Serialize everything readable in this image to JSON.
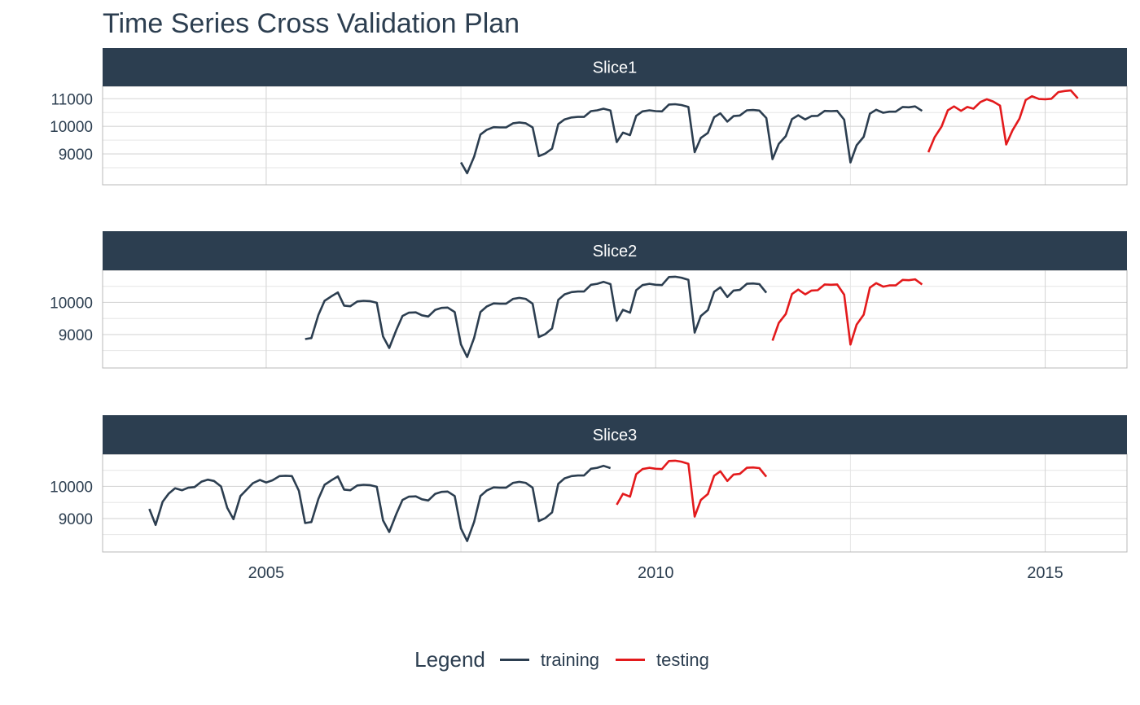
{
  "title": "Time Series Cross Validation Plan",
  "legend": {
    "title": "Legend",
    "items": [
      {
        "label": "training",
        "color": "#2c3e50"
      },
      {
        "label": "testing",
        "color": "#e31a1c"
      }
    ]
  },
  "colors": {
    "strip": "#2c3e50",
    "strip_text": "#ffffff",
    "training": "#2c3e50",
    "testing": "#e31a1c"
  },
  "chart_data": {
    "type": "line",
    "x_axis": {
      "ticks": [
        2005,
        2010,
        2015
      ],
      "range": [
        2002.9,
        2016.05
      ]
    },
    "base_series": [
      [
        2003.5,
        9300
      ],
      [
        2003.58,
        8800
      ],
      [
        2003.67,
        9520
      ],
      [
        2003.75,
        9780
      ],
      [
        2003.83,
        9940
      ],
      [
        2003.92,
        9880
      ],
      [
        2004.0,
        9960
      ],
      [
        2004.08,
        9980
      ],
      [
        2004.17,
        10150
      ],
      [
        2004.25,
        10210
      ],
      [
        2004.33,
        10170
      ],
      [
        2004.42,
        10000
      ],
      [
        2004.5,
        9330
      ],
      [
        2004.58,
        8980
      ],
      [
        2004.67,
        9700
      ],
      [
        2004.75,
        9900
      ],
      [
        2004.83,
        10100
      ],
      [
        2004.92,
        10200
      ],
      [
        2005.0,
        10120
      ],
      [
        2005.08,
        10190
      ],
      [
        2005.17,
        10320
      ],
      [
        2005.25,
        10330
      ],
      [
        2005.33,
        10320
      ],
      [
        2005.42,
        9860
      ],
      [
        2005.5,
        8860
      ],
      [
        2005.58,
        8890
      ],
      [
        2005.67,
        9610
      ],
      [
        2005.75,
        10050
      ],
      [
        2005.83,
        10180
      ],
      [
        2005.92,
        10310
      ],
      [
        2006.0,
        9900
      ],
      [
        2006.08,
        9880
      ],
      [
        2006.17,
        10030
      ],
      [
        2006.25,
        10050
      ],
      [
        2006.33,
        10040
      ],
      [
        2006.42,
        9990
      ],
      [
        2006.5,
        8940
      ],
      [
        2006.58,
        8580
      ],
      [
        2006.67,
        9140
      ],
      [
        2006.75,
        9580
      ],
      [
        2006.83,
        9680
      ],
      [
        2006.92,
        9690
      ],
      [
        2007.0,
        9600
      ],
      [
        2007.08,
        9560
      ],
      [
        2007.17,
        9770
      ],
      [
        2007.25,
        9830
      ],
      [
        2007.33,
        9840
      ],
      [
        2007.42,
        9700
      ],
      [
        2007.5,
        8690
      ],
      [
        2007.58,
        8300
      ],
      [
        2007.67,
        8900
      ],
      [
        2007.75,
        9700
      ],
      [
        2007.83,
        9870
      ],
      [
        2007.92,
        9970
      ],
      [
        2008.0,
        9960
      ],
      [
        2008.08,
        9960
      ],
      [
        2008.17,
        10110
      ],
      [
        2008.25,
        10140
      ],
      [
        2008.33,
        10110
      ],
      [
        2008.42,
        9960
      ],
      [
        2008.5,
        8920
      ],
      [
        2008.58,
        9010
      ],
      [
        2008.67,
        9190
      ],
      [
        2008.75,
        10080
      ],
      [
        2008.83,
        10250
      ],
      [
        2008.92,
        10320
      ],
      [
        2009.0,
        10340
      ],
      [
        2009.08,
        10340
      ],
      [
        2009.17,
        10550
      ],
      [
        2009.25,
        10580
      ],
      [
        2009.33,
        10640
      ],
      [
        2009.42,
        10570
      ],
      [
        2009.5,
        9430
      ],
      [
        2009.58,
        9770
      ],
      [
        2009.67,
        9680
      ],
      [
        2009.75,
        10380
      ],
      [
        2009.83,
        10540
      ],
      [
        2009.92,
        10580
      ],
      [
        2010.0,
        10550
      ],
      [
        2010.08,
        10540
      ],
      [
        2010.17,
        10790
      ],
      [
        2010.25,
        10800
      ],
      [
        2010.33,
        10770
      ],
      [
        2010.42,
        10700
      ],
      [
        2010.5,
        9060
      ],
      [
        2010.58,
        9580
      ],
      [
        2010.67,
        9760
      ],
      [
        2010.75,
        10330
      ],
      [
        2010.83,
        10470
      ],
      [
        2010.92,
        10170
      ],
      [
        2011.0,
        10370
      ],
      [
        2011.08,
        10390
      ],
      [
        2011.17,
        10580
      ],
      [
        2011.25,
        10590
      ],
      [
        2011.33,
        10570
      ],
      [
        2011.42,
        10300
      ],
      [
        2011.5,
        8810
      ],
      [
        2011.58,
        9360
      ],
      [
        2011.67,
        9640
      ],
      [
        2011.75,
        10260
      ],
      [
        2011.83,
        10400
      ],
      [
        2011.92,
        10250
      ],
      [
        2012.0,
        10370
      ],
      [
        2012.08,
        10380
      ],
      [
        2012.17,
        10560
      ],
      [
        2012.25,
        10550
      ],
      [
        2012.33,
        10560
      ],
      [
        2012.42,
        10240
      ],
      [
        2012.5,
        8690
      ],
      [
        2012.58,
        9310
      ],
      [
        2012.67,
        9620
      ],
      [
        2012.75,
        10460
      ],
      [
        2012.83,
        10600
      ],
      [
        2012.92,
        10490
      ],
      [
        2013.0,
        10530
      ],
      [
        2013.08,
        10530
      ],
      [
        2013.17,
        10700
      ],
      [
        2013.25,
        10690
      ],
      [
        2013.33,
        10720
      ],
      [
        2013.42,
        10560
      ],
      [
        2013.5,
        9060
      ],
      [
        2013.58,
        9600
      ],
      [
        2013.67,
        9990
      ],
      [
        2013.75,
        10580
      ],
      [
        2013.83,
        10720
      ],
      [
        2013.92,
        10560
      ],
      [
        2014.0,
        10700
      ],
      [
        2014.08,
        10640
      ],
      [
        2014.17,
        10880
      ],
      [
        2014.25,
        10980
      ],
      [
        2014.33,
        10900
      ],
      [
        2014.42,
        10750
      ],
      [
        2014.5,
        9340
      ],
      [
        2014.58,
        9850
      ],
      [
        2014.67,
        10280
      ],
      [
        2014.75,
        10950
      ],
      [
        2014.83,
        11090
      ],
      [
        2014.92,
        10990
      ],
      [
        2015.0,
        10980
      ],
      [
        2015.08,
        11000
      ],
      [
        2015.17,
        11240
      ],
      [
        2015.25,
        11280
      ],
      [
        2015.33,
        11300
      ],
      [
        2015.42,
        11010
      ]
    ],
    "panels": [
      {
        "label": "Slice1",
        "y_ticks": [
          9000,
          10000,
          11000
        ],
        "y_range": [
          7880,
          11450
        ],
        "training_range": [
          2007.5,
          2013.42
        ],
        "testing_range": [
          2013.5,
          2015.42
        ]
      },
      {
        "label": "Slice2",
        "y_ticks": [
          9000,
          10000
        ],
        "y_range": [
          7960,
          11000
        ],
        "training_range": [
          2005.5,
          2011.42
        ],
        "testing_range": [
          2011.5,
          2013.42
        ]
      },
      {
        "label": "Slice3",
        "y_ticks": [
          9000,
          10000
        ],
        "y_range": [
          7960,
          11000
        ],
        "training_range": [
          2003.5,
          2009.42
        ],
        "testing_range": [
          2009.5,
          2011.42
        ]
      }
    ]
  }
}
